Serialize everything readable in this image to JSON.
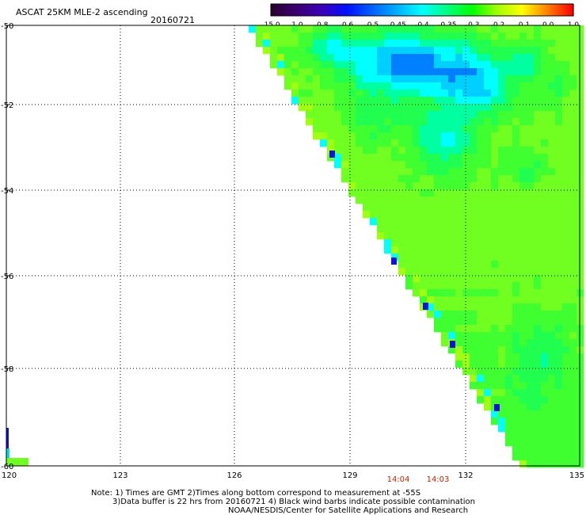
{
  "header": {
    "product": "ASCAT 25KM MLE-2 ascending",
    "date": "20160721"
  },
  "colorbar": {
    "labels": [
      "-15.0",
      "-1.0",
      "-0.8",
      "-0.6",
      "-0.5",
      "-0.45",
      "-0.4",
      "-0.35",
      "-0.3",
      "-0.2",
      "-0.1",
      "0.0",
      "1.0"
    ],
    "colors": [
      "#2a0030",
      "#3c0070",
      "#3a00b8",
      "#0010ff",
      "#0060ff",
      "#00b0ff",
      "#00ffff",
      "#00ff80",
      "#00ff00",
      "#a0ff00",
      "#ffff00",
      "#ff8000",
      "#ff0000"
    ]
  },
  "map": {
    "lat_labels": [
      "-50",
      "-52",
      "-54",
      "-56",
      "-58",
      "-60"
    ],
    "lon_labels": [
      "120",
      "123",
      "126",
      "129",
      "132",
      "135"
    ],
    "time_labels": [
      "14:04",
      "14:03"
    ]
  },
  "notes": {
    "line1": "Note: 1) Times are GMT 2)Times along bottom correspond to measurement at -55S",
    "line2": "3)Data buffer is 22 hrs from 20160721 4) Black wind barbs indicate possible contamination",
    "line3": "NOAA/NESDIS/Center for Satellite Applications and Research"
  }
}
